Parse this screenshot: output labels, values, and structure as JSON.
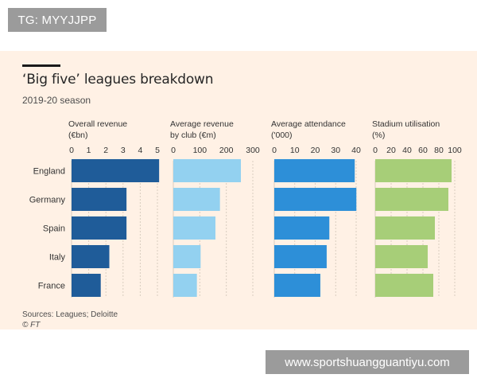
{
  "badge": {
    "text": "TG: MYYJJPP"
  },
  "watermark": {
    "text": "www.sportshuangguantiyu.com"
  },
  "figure": {
    "title": "‘Big five’ leagues breakdown",
    "subtitle": "2019-20 season",
    "source": "Sources: Leagues; Deloitte",
    "credit": "© FT"
  },
  "chart_data": {
    "type": "bar",
    "orientation": "horizontal",
    "categories": [
      "England",
      "Germany",
      "Spain",
      "Italy",
      "France"
    ],
    "grid": true,
    "panels": [
      {
        "name": "Overall revenue",
        "label_lines": [
          "Overall revenue",
          "(€bn)"
        ],
        "ticks": [
          0,
          1,
          2,
          3,
          4,
          5
        ],
        "xlim": [
          0,
          5
        ],
        "values": [
          5.1,
          3.2,
          3.2,
          2.2,
          1.7
        ],
        "color": "#1f5c99"
      },
      {
        "name": "Average revenue by club",
        "label_lines": [
          "Average revenue",
          "by club (€m)"
        ],
        "ticks": [
          0,
          100,
          200,
          300
        ],
        "xlim": [
          0,
          300
        ],
        "values": [
          255,
          176,
          159,
          103,
          89
        ],
        "color": "#93d1f0"
      },
      {
        "name": "Average attendance",
        "label_lines": [
          "Average attendance",
          "('000)"
        ],
        "ticks": [
          0,
          10,
          20,
          30,
          40
        ],
        "xlim": [
          0,
          40
        ],
        "values": [
          39.3,
          40.1,
          26.9,
          25.6,
          22.5
        ],
        "color": "#2d8fd8"
      },
      {
        "name": "Stadium utilisation",
        "label_lines": [
          "Stadium utilisation",
          "(%)"
        ],
        "ticks": [
          0,
          20,
          40,
          60,
          80,
          100
        ],
        "xlim": [
          0,
          100
        ],
        "values": [
          96,
          92,
          75,
          66,
          73
        ],
        "color": "#a7ce78"
      }
    ]
  }
}
